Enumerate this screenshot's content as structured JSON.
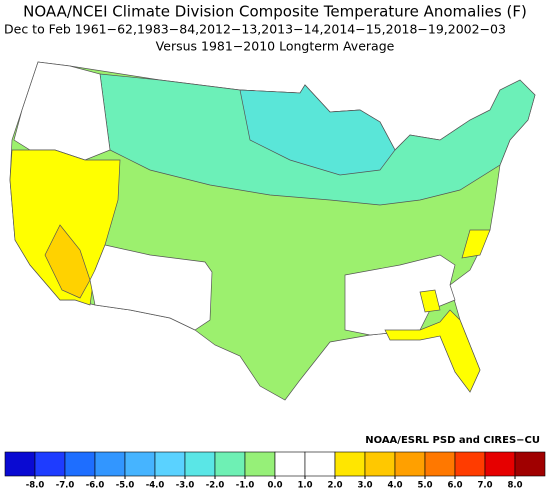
{
  "header": {
    "title": "NOAA/NCEI Climate Division Composite Temperature Anomalies (F)",
    "subtitle": "Dec to Feb  1961−62,1983−84,2012−13,2013−14,2014−15,2018−19,2002−03",
    "comparison": "Versus 1981−2010 Longterm Average"
  },
  "credit": "NOAA/ESRL PSD and CIRES−CU",
  "colorbar": {
    "colors": [
      "#0a0ad2",
      "#1e3cff",
      "#1e6eff",
      "#3296ff",
      "#46b4ff",
      "#5ad2ff",
      "#5ae6e6",
      "#6ef0b4",
      "#96f078",
      "#ffffff",
      "#ffffff",
      "#ffe600",
      "#ffc800",
      "#ffa000",
      "#ff7800",
      "#ff3c00",
      "#e60000",
      "#a00000"
    ],
    "ticks": [
      {
        "value": -8,
        "label": "-8.0"
      },
      {
        "value": -7,
        "label": "-7.0"
      },
      {
        "value": -6,
        "label": "-6.0"
      },
      {
        "value": -5,
        "label": "-5.0"
      },
      {
        "value": -4,
        "label": "-4.0"
      },
      {
        "value": -3,
        "label": "-3.0"
      },
      {
        "value": -2,
        "label": "-2.0"
      },
      {
        "value": -1,
        "label": "-1.0"
      },
      {
        "value": 0,
        "label": "0.0"
      },
      {
        "value": 1,
        "label": "1.0"
      },
      {
        "value": 2,
        "label": "2.0"
      },
      {
        "value": 3,
        "label": "3.0"
      },
      {
        "value": 4,
        "label": "4.0"
      },
      {
        "value": 5,
        "label": "5.0"
      },
      {
        "value": 6,
        "label": "6.0"
      },
      {
        "value": 7,
        "label": "7.0"
      },
      {
        "value": 8,
        "label": "8.0"
      }
    ]
  }
}
